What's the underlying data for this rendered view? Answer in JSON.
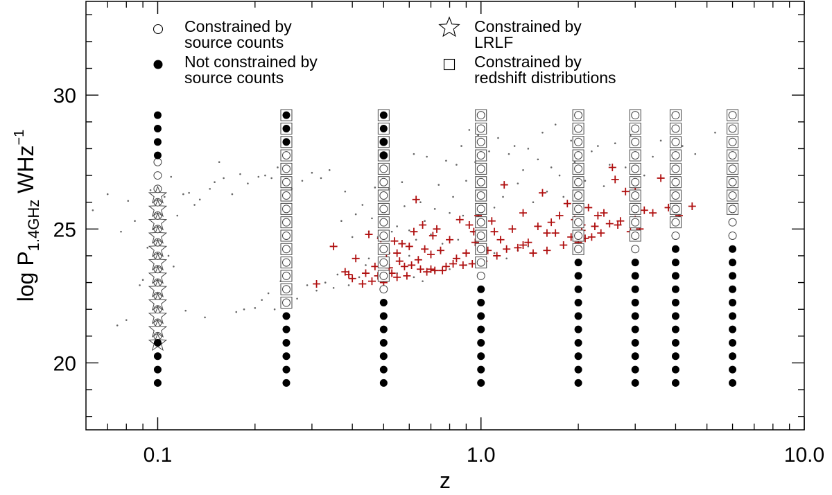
{
  "chart_data": {
    "type": "scatter",
    "xscale": "log",
    "xlim": [
      0.06,
      10.0
    ],
    "ylim": [
      17.5,
      33.5
    ],
    "xlabel": "z",
    "ylabel": {
      "main": "log P",
      "sub": "1.4GHz",
      "unit": " WHz",
      "sup": "−1"
    },
    "x_ticks": [
      {
        "value": 0.1,
        "label": "0.1"
      },
      {
        "value": 1.0,
        "label": "1.0"
      },
      {
        "value": 10.0,
        "label": "10.0"
      }
    ],
    "y_ticks": [
      {
        "value": 20,
        "label": "20"
      },
      {
        "value": 25,
        "label": "25"
      },
      {
        "value": 30,
        "label": "30"
      }
    ],
    "legend": {
      "placement": "top",
      "entries": [
        {
          "marker": "open-circle",
          "lines": [
            "Constrained by",
            "source counts"
          ]
        },
        {
          "marker": "filled-circle",
          "lines": [
            "Not constrained by",
            "source counts"
          ]
        },
        {
          "marker": "star",
          "lines": [
            "Constrained by",
            "LRLF"
          ]
        },
        {
          "marker": "square",
          "lines": [
            "Constrained by",
            "redshift distributions"
          ]
        }
      ]
    },
    "grid_columns": [
      {
        "z": 0.1,
        "filled": [
          [
            19.25,
            20.75
          ],
          [
            27.75,
            29.25
          ]
        ],
        "open": [
          [
            21.0,
            27.5
          ]
        ],
        "squares": [],
        "stars": [
          20.75,
          26.25
        ]
      },
      {
        "z": 0.25,
        "filled": [
          [
            19.25,
            21.75
          ],
          [
            28.25,
            29.25
          ]
        ],
        "open": [
          [
            22.25,
            28.0
          ]
        ],
        "squares": [
          [
            22.25,
            29.25
          ]
        ],
        "stars": null
      },
      {
        "z": 0.5,
        "filled": [
          [
            19.25,
            22.25
          ],
          [
            27.75,
            29.25
          ]
        ],
        "open": [
          [
            22.75,
            28.25
          ]
        ],
        "squares": [
          [
            23.25,
            29.25
          ]
        ],
        "stars": null
      },
      {
        "z": 1.0,
        "filled": [
          [
            19.25,
            22.75
          ]
        ],
        "open": [
          [
            23.25,
            29.25
          ]
        ],
        "squares": [
          [
            23.75,
            29.25
          ]
        ],
        "stars": null
      },
      {
        "z": 2.0,
        "filled": [
          [
            19.25,
            23.75
          ]
        ],
        "open": [
          [
            24.25,
            29.25
          ]
        ],
        "squares": [
          [
            24.25,
            29.25
          ]
        ],
        "stars": null
      },
      {
        "z": 3.0,
        "filled": [
          [
            19.25,
            23.75
          ]
        ],
        "open": [
          [
            24.25,
            29.25
          ]
        ],
        "squares": [
          [
            24.75,
            29.25
          ]
        ],
        "stars": null
      },
      {
        "z": 4.0,
        "filled": [
          [
            19.25,
            24.25
          ]
        ],
        "open": [
          [
            24.75,
            29.25
          ]
        ],
        "squares": [
          [
            25.25,
            29.25
          ]
        ],
        "stars": null
      },
      {
        "z": 6.0,
        "filled": [
          [
            19.25,
            24.25
          ]
        ],
        "open": [
          [
            24.75,
            29.25
          ]
        ],
        "squares": [
          [
            25.75,
            29.25
          ]
        ],
        "stars": null
      }
    ],
    "grid_step": 0.5,
    "series": [
      {
        "marker": "plus",
        "color": "#b01010",
        "points": [
          [
            0.31,
            22.95
          ],
          [
            0.35,
            24.35
          ],
          [
            0.38,
            23.4
          ],
          [
            0.39,
            23.3
          ],
          [
            0.4,
            23.15
          ],
          [
            0.41,
            23.9
          ],
          [
            0.43,
            22.95
          ],
          [
            0.44,
            23.35
          ],
          [
            0.45,
            24.8
          ],
          [
            0.46,
            23.05
          ],
          [
            0.47,
            23.6
          ],
          [
            0.48,
            23.25
          ],
          [
            0.49,
            24.65
          ],
          [
            0.5,
            23.0
          ],
          [
            0.51,
            24.1
          ],
          [
            0.52,
            23.55
          ],
          [
            0.53,
            23.35
          ],
          [
            0.54,
            24.55
          ],
          [
            0.55,
            23.2
          ],
          [
            0.56,
            23.8
          ],
          [
            0.57,
            24.45
          ],
          [
            0.58,
            23.6
          ],
          [
            0.59,
            23.25
          ],
          [
            0.6,
            24.35
          ],
          [
            0.61,
            23.65
          ],
          [
            0.62,
            24.9
          ],
          [
            0.63,
            26.1
          ],
          [
            0.64,
            23.85
          ],
          [
            0.65,
            23.5
          ],
          [
            0.66,
            25.15
          ],
          [
            0.67,
            24.25
          ],
          [
            0.68,
            23.4
          ],
          [
            0.7,
            23.5
          ],
          [
            0.71,
            24.75
          ],
          [
            0.72,
            23.45
          ],
          [
            0.73,
            25.0
          ],
          [
            0.75,
            24.2
          ],
          [
            0.76,
            23.45
          ],
          [
            0.78,
            23.6
          ],
          [
            0.8,
            24.6
          ],
          [
            0.82,
            23.7
          ],
          [
            0.84,
            23.9
          ],
          [
            0.86,
            25.35
          ],
          [
            0.88,
            23.65
          ],
          [
            0.9,
            24.1
          ],
          [
            0.92,
            25.15
          ],
          [
            0.94,
            23.7
          ],
          [
            0.96,
            24.5
          ],
          [
            0.98,
            25.5
          ],
          [
            1.0,
            24.7
          ],
          [
            1.02,
            23.8
          ],
          [
            1.05,
            24.2
          ],
          [
            1.08,
            25.3
          ],
          [
            1.1,
            24.9
          ],
          [
            1.12,
            24.0
          ],
          [
            1.15,
            24.6
          ],
          [
            1.18,
            26.65
          ],
          [
            1.2,
            24.25
          ],
          [
            1.25,
            25.0
          ],
          [
            1.3,
            24.3
          ],
          [
            1.35,
            25.6
          ],
          [
            1.4,
            24.5
          ],
          [
            1.45,
            24.1
          ],
          [
            1.5,
            25.1
          ],
          [
            1.55,
            26.35
          ],
          [
            1.6,
            24.2
          ],
          [
            1.65,
            25.25
          ],
          [
            1.7,
            24.85
          ],
          [
            1.75,
            25.5
          ],
          [
            1.8,
            24.4
          ],
          [
            1.85,
            25.95
          ],
          [
            1.9,
            24.7
          ],
          [
            1.95,
            25.35
          ],
          [
            2.0,
            24.5
          ],
          [
            2.05,
            25.15
          ],
          [
            2.1,
            24.65
          ],
          [
            2.15,
            25.8
          ],
          [
            2.2,
            24.7
          ],
          [
            2.25,
            25.1
          ],
          [
            2.3,
            25.5
          ],
          [
            2.4,
            25.6
          ],
          [
            2.5,
            25.2
          ],
          [
            2.55,
            27.3
          ],
          [
            2.6,
            26.85
          ],
          [
            2.7,
            25.3
          ],
          [
            2.8,
            26.4
          ],
          [
            2.9,
            24.9
          ],
          [
            3.0,
            26.55
          ],
          [
            3.1,
            25.0
          ],
          [
            3.2,
            25.7
          ],
          [
            3.4,
            25.6
          ],
          [
            3.6,
            26.9
          ],
          [
            3.8,
            25.8
          ],
          [
            4.1,
            25.5
          ],
          [
            4.5,
            25.85
          ],
          [
            0.55,
            24.1
          ],
          [
            0.7,
            24.05
          ],
          [
            0.95,
            24.9
          ],
          [
            1.35,
            24.4
          ],
          [
            1.6,
            24.85
          ],
          [
            2.05,
            24.95
          ],
          [
            2.35,
            24.85
          ],
          [
            2.65,
            25.15
          ],
          [
            3.0,
            25.35
          ]
        ]
      },
      {
        "marker": "dot",
        "color": "#666666",
        "points": [
          [
            0.063,
            25.7
          ],
          [
            0.07,
            26.3
          ],
          [
            0.075,
            21.4
          ],
          [
            0.077,
            24.9
          ],
          [
            0.08,
            21.6
          ],
          [
            0.081,
            26.05
          ],
          [
            0.085,
            25.3
          ],
          [
            0.088,
            22.9
          ],
          [
            0.09,
            23.1
          ],
          [
            0.093,
            24.3
          ],
          [
            0.095,
            26.45
          ],
          [
            0.097,
            25.0
          ],
          [
            0.105,
            26.2
          ],
          [
            0.108,
            24.0
          ],
          [
            0.11,
            26.95
          ],
          [
            0.112,
            23.6
          ],
          [
            0.115,
            25.5
          ],
          [
            0.12,
            26.3
          ],
          [
            0.122,
            21.95
          ],
          [
            0.125,
            26.35
          ],
          [
            0.13,
            25.9
          ],
          [
            0.135,
            26.1
          ],
          [
            0.14,
            21.7
          ],
          [
            0.145,
            26.5
          ],
          [
            0.15,
            26.75
          ],
          [
            0.155,
            27.5
          ],
          [
            0.16,
            26.9
          ],
          [
            0.17,
            26.3
          ],
          [
            0.175,
            21.9
          ],
          [
            0.18,
            27.05
          ],
          [
            0.185,
            22.0
          ],
          [
            0.19,
            26.7
          ],
          [
            0.2,
            22.05
          ],
          [
            0.205,
            26.95
          ],
          [
            0.21,
            22.35
          ],
          [
            0.215,
            27.0
          ],
          [
            0.22,
            22.6
          ],
          [
            0.225,
            26.9
          ],
          [
            0.23,
            22.0
          ],
          [
            0.235,
            27.3
          ],
          [
            0.24,
            23.05
          ],
          [
            0.245,
            22.9
          ],
          [
            0.255,
            23.35
          ],
          [
            0.26,
            26.5
          ],
          [
            0.27,
            22.4
          ],
          [
            0.28,
            26.8
          ],
          [
            0.29,
            22.9
          ],
          [
            0.3,
            27.1
          ],
          [
            0.31,
            22.7
          ],
          [
            0.32,
            26.9
          ],
          [
            0.33,
            23.0
          ],
          [
            0.34,
            27.2
          ],
          [
            0.35,
            22.8
          ],
          [
            0.36,
            23.3
          ],
          [
            0.37,
            25.3
          ],
          [
            0.38,
            26.4
          ],
          [
            0.39,
            22.9
          ],
          [
            0.4,
            24.7
          ],
          [
            0.41,
            25.55
          ],
          [
            0.42,
            23.2
          ],
          [
            0.43,
            25.9
          ],
          [
            0.44,
            23.65
          ],
          [
            0.45,
            24.9
          ],
          [
            0.46,
            25.4
          ],
          [
            0.47,
            26.55
          ],
          [
            0.48,
            24.7
          ],
          [
            0.52,
            26.5
          ],
          [
            0.53,
            24.9
          ],
          [
            0.55,
            25.1
          ],
          [
            0.57,
            26.75
          ],
          [
            0.58,
            25.85
          ],
          [
            0.6,
            24.95
          ],
          [
            0.62,
            27.8
          ],
          [
            0.63,
            24.6
          ],
          [
            0.65,
            26.0
          ],
          [
            0.67,
            25.3
          ],
          [
            0.68,
            27.7
          ],
          [
            0.7,
            24.8
          ],
          [
            0.72,
            25.75
          ],
          [
            0.74,
            26.65
          ],
          [
            0.76,
            24.45
          ],
          [
            0.78,
            27.55
          ],
          [
            0.8,
            25.6
          ],
          [
            0.82,
            26.2
          ],
          [
            0.84,
            27.4
          ],
          [
            0.85,
            24.6
          ],
          [
            0.87,
            28.1
          ],
          [
            0.88,
            25.5
          ],
          [
            0.9,
            26.8
          ],
          [
            0.92,
            28.7
          ],
          [
            0.94,
            24.9
          ],
          [
            0.96,
            27.5
          ],
          [
            0.98,
            28.5
          ],
          [
            1.03,
            26.6
          ],
          [
            1.06,
            27.9
          ],
          [
            1.1,
            25.8
          ],
          [
            1.13,
            28.4
          ],
          [
            1.17,
            26.2
          ],
          [
            1.22,
            27.8
          ],
          [
            1.27,
            28.1
          ],
          [
            1.3,
            26.7
          ],
          [
            1.35,
            27.2
          ],
          [
            1.4,
            28.0
          ],
          [
            1.45,
            26.0
          ],
          [
            1.5,
            27.6
          ],
          [
            1.55,
            28.6
          ],
          [
            1.6,
            26.4
          ],
          [
            1.65,
            27.3
          ],
          [
            1.7,
            28.9
          ],
          [
            1.75,
            27.0
          ],
          [
            1.8,
            26.2
          ],
          [
            1.9,
            28.3
          ],
          [
            1.95,
            27.5
          ],
          [
            2.1,
            26.8
          ],
          [
            2.2,
            27.9
          ],
          [
            2.3,
            28.1
          ],
          [
            2.4,
            26.6
          ],
          [
            2.5,
            27.4
          ],
          [
            2.6,
            28.2
          ],
          [
            2.8,
            27.3
          ],
          [
            2.9,
            28.5
          ],
          [
            3.2,
            27.0
          ],
          [
            3.4,
            27.7
          ],
          [
            3.6,
            28.3
          ],
          [
            3.9,
            27.6
          ],
          [
            4.2,
            28.1
          ],
          [
            4.6,
            27.8
          ],
          [
            5.3,
            28.6
          ],
          [
            0.5,
            23.8
          ],
          [
            0.55,
            23.35
          ],
          [
            0.62,
            23.2
          ],
          [
            0.66,
            23.05
          ],
          [
            0.72,
            23.4
          ],
          [
            0.8,
            23.5
          ],
          [
            0.9,
            23.65
          ],
          [
            1.0,
            23.95
          ],
          [
            1.1,
            24.1
          ],
          [
            1.2,
            23.9
          ],
          [
            1.3,
            24.2
          ],
          [
            1.4,
            24.35
          ],
          [
            0.45,
            23.9
          ],
          [
            0.6,
            24.0
          ],
          [
            0.75,
            24.15
          ]
        ]
      }
    ]
  }
}
